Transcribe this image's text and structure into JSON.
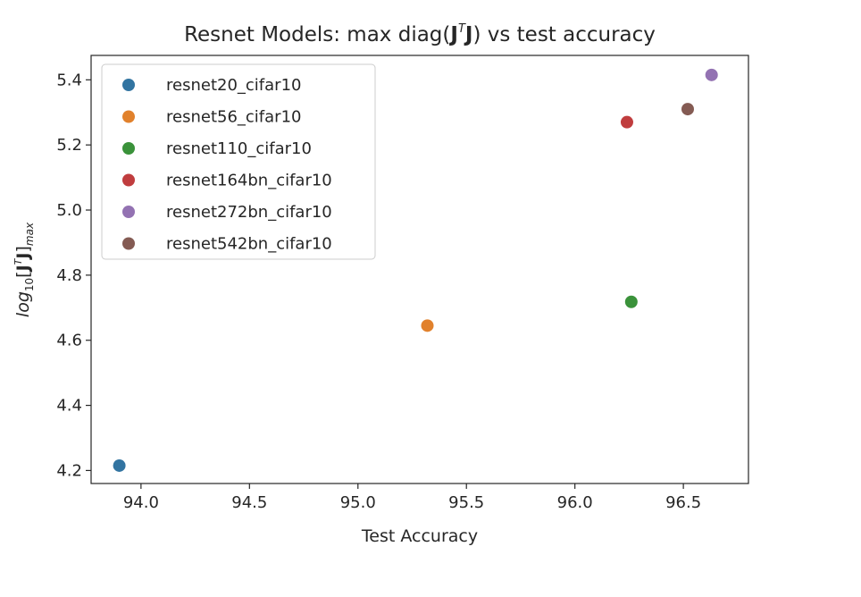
{
  "chart_data": {
    "type": "scatter",
    "title": {
      "prefix": "Resnet Models: max diag(",
      "bold_1": "J",
      "sup": "T",
      "bold_2": "J",
      "suffix": ") vs test accuracy"
    },
    "xlabel": "Test Accuracy",
    "ylabel": {
      "prefix": "log",
      "sub_1": "10",
      "bracket_open": "[",
      "bold_1": "J",
      "sup": "T",
      "bold_2": "J",
      "bracket_close": "]",
      "sub_2": "max"
    },
    "xlim": [
      93.77,
      96.8
    ],
    "ylim": [
      4.16,
      5.475
    ],
    "xticks": [
      {
        "value": 94.0,
        "label": "94.0"
      },
      {
        "value": 94.5,
        "label": "94.5"
      },
      {
        "value": 95.0,
        "label": "95.0"
      },
      {
        "value": 95.5,
        "label": "95.5"
      },
      {
        "value": 96.0,
        "label": "96.0"
      },
      {
        "value": 96.5,
        "label": "96.5"
      }
    ],
    "yticks": [
      {
        "value": 4.2,
        "label": "4.2"
      },
      {
        "value": 4.4,
        "label": "4.4"
      },
      {
        "value": 4.6,
        "label": "4.6"
      },
      {
        "value": 4.8,
        "label": "4.8"
      },
      {
        "value": 5.0,
        "label": "5.0"
      },
      {
        "value": 5.2,
        "label": "5.2"
      },
      {
        "value": 5.4,
        "label": "5.4"
      }
    ],
    "grid": false,
    "legend_position": "top-left",
    "series": [
      {
        "name": "resnet20_cifar10",
        "color": "#3274a1",
        "x": 93.9,
        "y": 4.215
      },
      {
        "name": "resnet56_cifar10",
        "color": "#e1812c",
        "x": 95.32,
        "y": 4.645
      },
      {
        "name": "resnet110_cifar10",
        "color": "#3a923a",
        "x": 96.26,
        "y": 4.718
      },
      {
        "name": "resnet164bn_cifar10",
        "color": "#c03d3e",
        "x": 96.24,
        "y": 5.27
      },
      {
        "name": "resnet272bn_cifar10",
        "color": "#9372b2",
        "x": 96.63,
        "y": 5.415
      },
      {
        "name": "resnet542bn_cifar10",
        "color": "#845b53",
        "x": 96.52,
        "y": 5.31
      }
    ]
  }
}
